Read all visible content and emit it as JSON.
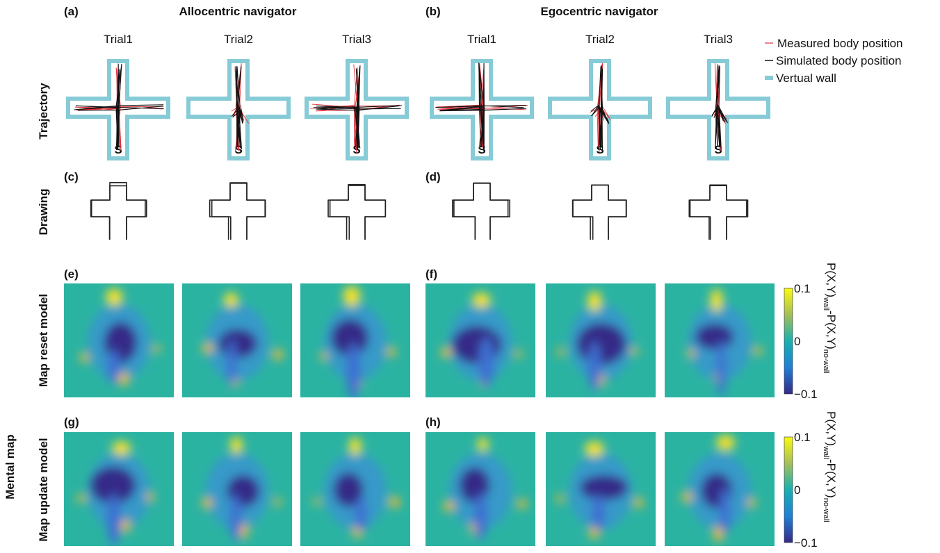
{
  "panel_labels": [
    "(a)",
    "(b)",
    "(c)",
    "(d)",
    "(e)",
    "(f)",
    "(g)",
    "(h)"
  ],
  "headers": {
    "allocentric": "Allocentric navigator",
    "egocentric": "Egocentric navigator"
  },
  "trials": [
    "Trial1",
    "Trial2",
    "Trial3",
    "Trial1",
    "Trial2",
    "Trial3"
  ],
  "legend": [
    "Measured body position",
    "Simulated body position",
    "Vertual wall"
  ],
  "row_labels": {
    "trajectory": "Trajectory",
    "drawing": "Drawing",
    "mental_map": "Mental map",
    "map_reset": "Map reset model",
    "map_update": "Map update model"
  },
  "start_marker": "S",
  "colorbars": [
    {
      "ticks": [
        "0.1",
        "0",
        "−0.1"
      ],
      "label": {
        "p1": "P(X,Y)",
        "sub1": "wall",
        "p2": "-P(X,Y)",
        "sub2": "no-wall"
      }
    },
    {
      "ticks": [
        "0.1",
        "0",
        "−0.1"
      ],
      "label": {
        "p1": "P(X,Y)",
        "sub1": "wall",
        "p2": "-P(X,Y)",
        "sub2": "no-wall"
      }
    }
  ]
}
